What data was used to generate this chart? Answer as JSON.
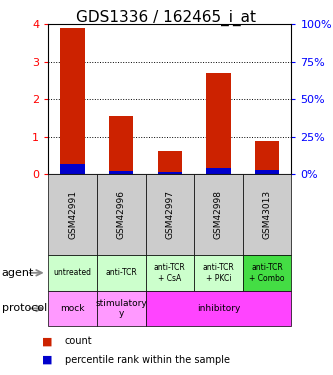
{
  "title": "GDS1336 / 162465_i_at",
  "samples": [
    "GSM42991",
    "GSM42996",
    "GSM42997",
    "GSM42998",
    "GSM43013"
  ],
  "count_values": [
    3.9,
    1.55,
    0.62,
    2.7,
    0.88
  ],
  "percentile_values": [
    7,
    2.5,
    1.5,
    4,
    3
  ],
  "agent_labels": [
    "untreated",
    "anti-TCR",
    "anti-TCR\n+ CsA",
    "anti-TCR\n+ PKCi",
    "anti-TCR\n+ Combo"
  ],
  "agent_colors": [
    "#ccffcc",
    "#ccffcc",
    "#ccffcc",
    "#ccffcc",
    "#44dd44"
  ],
  "protocol_spans": [
    {
      "start": 0,
      "end": 0,
      "label": "mock",
      "color": "#ff99ff"
    },
    {
      "start": 1,
      "end": 1,
      "label": "stimulatory\ny",
      "color": "#ff99ff"
    },
    {
      "start": 2,
      "end": 4,
      "label": "inhibitory",
      "color": "#ff44ff"
    }
  ],
  "bar_color_red": "#cc2200",
  "bar_color_blue": "#0000cc",
  "ylim_left": [
    0,
    4
  ],
  "ylim_right": [
    0,
    100
  ],
  "yticks_left": [
    0,
    1,
    2,
    3,
    4
  ],
  "yticks_right": [
    0,
    25,
    50,
    75,
    100
  ],
  "sample_bg_color": "#cccccc",
  "title_fontsize": 11
}
